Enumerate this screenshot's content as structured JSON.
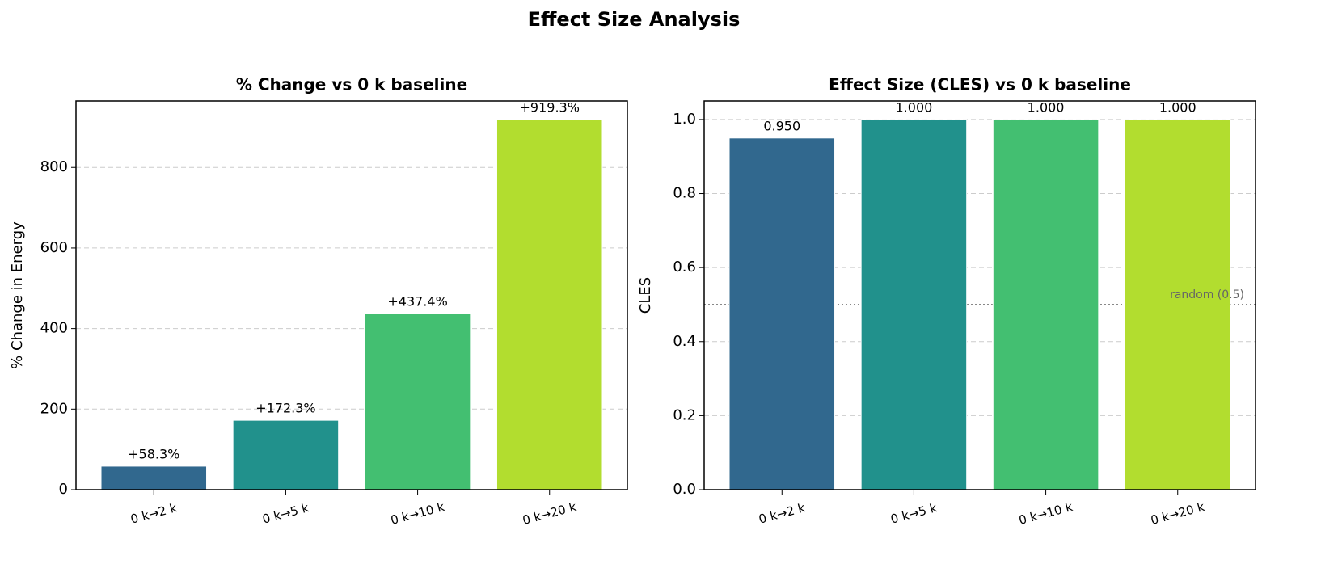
{
  "title": "Effect Size Analysis",
  "chart_data": [
    {
      "type": "bar",
      "title": "% Change vs 0 k baseline",
      "y_label": "% Change in Energy",
      "categories": [
        "0 k→2 k",
        "0 k→5 k",
        "0 k→10 k",
        "0 k→20 k"
      ],
      "values": [
        58.3,
        172.3,
        437.4,
        919.3
      ],
      "value_labels": [
        "+58.3%",
        "+172.3%",
        "+437.4%",
        "+919.3%"
      ],
      "colors": [
        "#31688e",
        "#21918c",
        "#43bf71",
        "#b2dd2f"
      ],
      "ylim": [
        0,
        965
      ],
      "yticks": [
        0,
        200,
        400,
        600,
        800
      ],
      "grid": true
    },
    {
      "type": "bar",
      "title": "Effect Size (CLES) vs 0 k baseline",
      "y_label": "CLES",
      "categories": [
        "0 k→2 k",
        "0 k→5 k",
        "0 k→10 k",
        "0 k→20 k"
      ],
      "values": [
        0.95,
        1,
        1,
        1
      ],
      "value_labels": [
        "0.950",
        "1.000",
        "1.000",
        "1.000"
      ],
      "colors": [
        "#31688e",
        "#21918c",
        "#43bf71",
        "#b2dd2f"
      ],
      "ylim": [
        0,
        1.05
      ],
      "yticks": [
        {
          "value": 0,
          "label": "0.0"
        },
        0.2,
        0.4,
        0.6,
        0.8,
        {
          "value": 1,
          "label": "1.0"
        }
      ],
      "grid": true,
      "ref_line": {
        "value": 0.5,
        "label": "random (0.5)"
      }
    }
  ]
}
